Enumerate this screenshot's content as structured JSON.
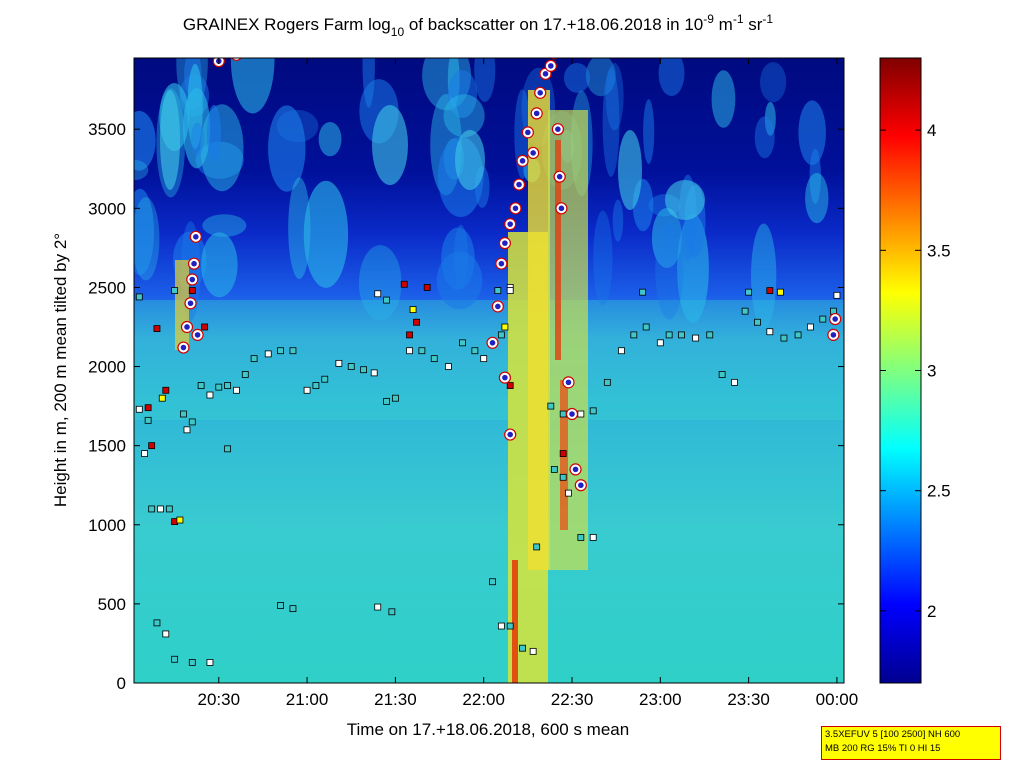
{
  "chart_data": {
    "type": "heatmap",
    "title_parts": {
      "pre": "GRAINEX Rogers Farm log",
      "sub": "10",
      "mid": " of backscatter on 17.+18.06.2018 in 10",
      "sup1": "-9",
      "mid2": " m",
      "sup2": "-1",
      "mid3": " sr",
      "sup3": "-1"
    },
    "xlabel": "Time on 17.+18.06.2018, 600 s mean",
    "ylabel": "Height in m, 200 m mean tilted by 2°",
    "x_ticks": [
      "20:30",
      "21:00",
      "21:30",
      "22:00",
      "22:30",
      "23:00",
      "23:30",
      "00:00"
    ],
    "y_ticks": [
      "0",
      "500",
      "1000",
      "1500",
      "2000",
      "2500",
      "3000",
      "3500"
    ],
    "ylim": [
      0,
      3950
    ],
    "xlim_hours": [
      20.02,
      24.04
    ],
    "colorbar": {
      "ticks": [
        "2",
        "2.5",
        "3",
        "3.5",
        "4"
      ],
      "range": [
        1.7,
        4.3
      ],
      "colormap": "jet"
    },
    "layer_points_hours_m": [
      [
        20.05,
        1730
      ],
      [
        20.1,
        1660
      ],
      [
        20.12,
        1100
      ],
      [
        20.17,
        1100
      ],
      [
        20.22,
        1100
      ],
      [
        20.3,
        1700
      ],
      [
        20.32,
        1600
      ],
      [
        20.35,
        1650
      ],
      [
        20.4,
        1880
      ],
      [
        20.45,
        1820
      ],
      [
        20.5,
        1870
      ],
      [
        20.55,
        1880
      ],
      [
        20.6,
        1850
      ],
      [
        20.65,
        1950
      ],
      [
        20.7,
        2050
      ],
      [
        20.78,
        2080
      ],
      [
        20.85,
        2100
      ],
      [
        20.92,
        2100
      ],
      [
        21.0,
        1850
      ],
      [
        21.05,
        1880
      ],
      [
        21.1,
        1920
      ],
      [
        21.18,
        2020
      ],
      [
        21.25,
        2000
      ],
      [
        21.32,
        1980
      ],
      [
        21.38,
        1960
      ],
      [
        21.45,
        1780
      ],
      [
        21.5,
        1800
      ],
      [
        21.58,
        2100
      ],
      [
        21.65,
        2100
      ],
      [
        21.72,
        2050
      ],
      [
        21.8,
        2000
      ],
      [
        21.88,
        2150
      ],
      [
        21.95,
        2100
      ],
      [
        22.0,
        2050
      ],
      [
        22.05,
        2150
      ],
      [
        22.1,
        2200
      ],
      [
        22.15,
        2500
      ],
      [
        22.38,
        1750
      ],
      [
        22.45,
        1700
      ],
      [
        22.55,
        1700
      ],
      [
        22.62,
        1720
      ],
      [
        22.7,
        1900
      ],
      [
        22.78,
        2100
      ],
      [
        22.85,
        2200
      ],
      [
        22.92,
        2250
      ],
      [
        23.0,
        2150
      ],
      [
        23.05,
        2200
      ],
      [
        23.12,
        2200
      ],
      [
        23.2,
        2180
      ],
      [
        23.28,
        2200
      ],
      [
        23.35,
        1950
      ],
      [
        23.42,
        1900
      ],
      [
        23.48,
        2350
      ],
      [
        23.55,
        2280
      ],
      [
        23.62,
        2220
      ],
      [
        23.7,
        2180
      ],
      [
        23.78,
        2200
      ],
      [
        23.85,
        2250
      ],
      [
        23.92,
        2300
      ],
      [
        23.98,
        2350
      ],
      [
        20.08,
        1450
      ],
      [
        20.55,
        1480
      ],
      [
        20.15,
        380
      ],
      [
        20.2,
        310
      ],
      [
        20.25,
        150
      ],
      [
        20.35,
        130
      ],
      [
        20.45,
        130
      ],
      [
        20.85,
        490
      ],
      [
        20.92,
        470
      ],
      [
        21.4,
        480
      ],
      [
        21.48,
        450
      ],
      [
        22.05,
        640
      ],
      [
        22.1,
        360
      ],
      [
        22.15,
        360
      ],
      [
        22.22,
        220
      ],
      [
        22.28,
        200
      ],
      [
        22.3,
        860
      ],
      [
        22.55,
        920
      ],
      [
        22.62,
        920
      ],
      [
        22.4,
        1350
      ],
      [
        22.45,
        1300
      ],
      [
        22.48,
        1200
      ],
      [
        20.05,
        2440
      ],
      [
        20.25,
        2480
      ],
      [
        21.4,
        2460
      ],
      [
        21.45,
        2420
      ],
      [
        22.08,
        2480
      ],
      [
        22.15,
        2480
      ],
      [
        22.9,
        2470
      ],
      [
        23.5,
        2470
      ],
      [
        24.0,
        2450
      ]
    ],
    "cloud_points_hours_m": [
      [
        20.3,
        2120
      ],
      [
        20.32,
        2250
      ],
      [
        20.34,
        2400
      ],
      [
        20.35,
        2550
      ],
      [
        20.36,
        2650
      ],
      [
        20.37,
        2820
      ],
      [
        20.38,
        2200
      ],
      [
        20.5,
        3930
      ],
      [
        20.6,
        3970
      ],
      [
        22.05,
        2150
      ],
      [
        22.08,
        2380
      ],
      [
        22.1,
        2650
      ],
      [
        22.12,
        2780
      ],
      [
        22.15,
        2900
      ],
      [
        22.18,
        3000
      ],
      [
        22.2,
        3150
      ],
      [
        22.22,
        3300
      ],
      [
        22.25,
        3480
      ],
      [
        22.28,
        3350
      ],
      [
        22.3,
        3600
      ],
      [
        22.32,
        3730
      ],
      [
        22.35,
        3850
      ],
      [
        22.38,
        3900
      ],
      [
        22.4,
        3980
      ],
      [
        22.42,
        3500
      ],
      [
        22.43,
        3200
      ],
      [
        22.44,
        3000
      ],
      [
        22.12,
        1930
      ],
      [
        22.15,
        1570
      ],
      [
        22.48,
        1900
      ],
      [
        22.5,
        1700
      ],
      [
        22.52,
        1350
      ],
      [
        22.55,
        1250
      ],
      [
        23.98,
        2200
      ],
      [
        23.99,
        2300
      ]
    ],
    "noise_points_hours_m": [
      [
        20.15,
        2240
      ],
      [
        20.18,
        1800
      ],
      [
        20.2,
        1850
      ],
      [
        20.12,
        1500
      ],
      [
        20.25,
        1020
      ],
      [
        20.28,
        1030
      ],
      [
        20.42,
        2250
      ],
      [
        20.35,
        2480
      ],
      [
        21.55,
        2520
      ],
      [
        21.6,
        2360
      ],
      [
        21.62,
        2280
      ],
      [
        21.58,
        2200
      ],
      [
        21.68,
        2500
      ],
      [
        22.12,
        2250
      ],
      [
        22.15,
        1880
      ],
      [
        22.45,
        1450
      ],
      [
        23.62,
        2480
      ],
      [
        23.68,
        2470
      ],
      [
        20.1,
        1740
      ]
    ]
  },
  "info_box": {
    "line1": "3.5XEFUV 5 [100 2500] NH 600",
    "line2": "MB 200 RG 15% TI 0 HI 15"
  }
}
